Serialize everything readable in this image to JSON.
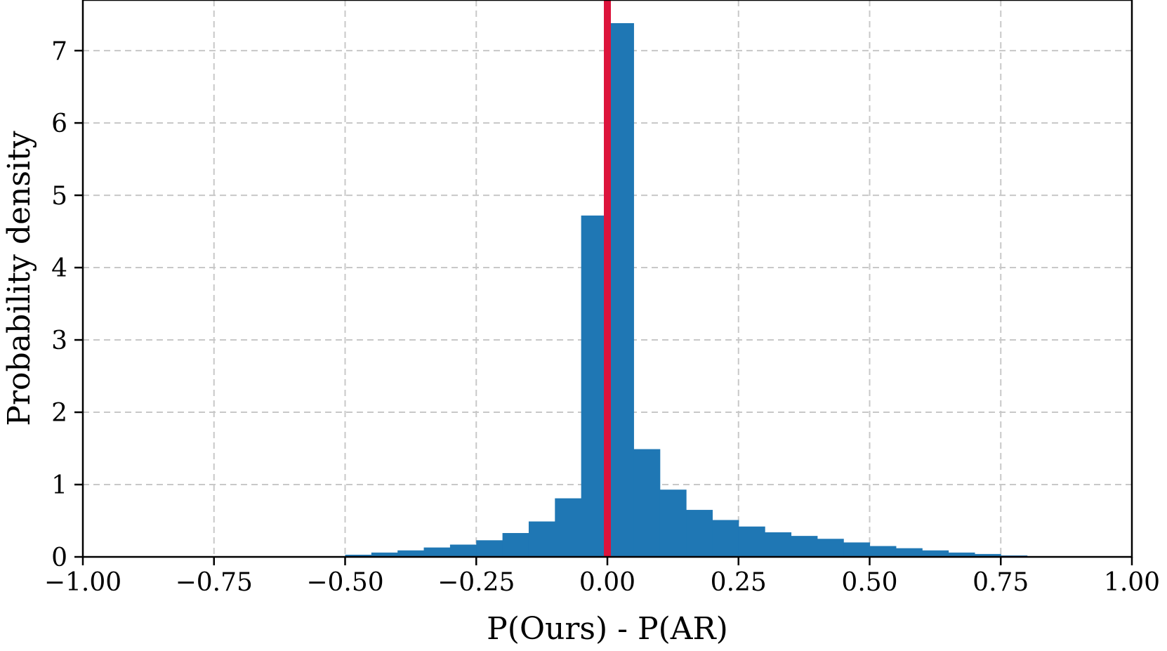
{
  "chart_data": {
    "type": "bar",
    "subtype": "histogram",
    "xlabel": "P(Ours) - P(AR)",
    "ylabel": "Probability density",
    "xlim": [
      -1.0,
      1.0
    ],
    "ylim": [
      0,
      7.7
    ],
    "xticks": [
      -1.0,
      -0.75,
      -0.5,
      -0.25,
      0.0,
      0.25,
      0.5,
      0.75,
      1.0
    ],
    "xtick_labels": [
      "−1.00",
      "−0.75",
      "−0.50",
      "−0.25",
      "0.00",
      "0.25",
      "0.50",
      "0.75",
      "1.00"
    ],
    "yticks": [
      0,
      1,
      2,
      3,
      4,
      5,
      6,
      7
    ],
    "ytick_labels": [
      "0",
      "1",
      "2",
      "3",
      "4",
      "5",
      "6",
      "7"
    ],
    "grid": true,
    "bin_width": 0.05,
    "bin_starts": [
      -0.5,
      -0.45,
      -0.4,
      -0.35,
      -0.3,
      -0.25,
      -0.2,
      -0.15,
      -0.1,
      -0.05,
      0.0,
      0.05,
      0.1,
      0.15,
      0.2,
      0.25,
      0.3,
      0.35,
      0.4,
      0.45,
      0.5,
      0.55,
      0.6,
      0.65,
      0.7,
      0.75
    ],
    "values": [
      0.03,
      0.06,
      0.09,
      0.13,
      0.17,
      0.23,
      0.33,
      0.49,
      0.81,
      4.72,
      7.38,
      1.49,
      0.93,
      0.65,
      0.51,
      0.42,
      0.34,
      0.29,
      0.25,
      0.2,
      0.15,
      0.12,
      0.09,
      0.06,
      0.04,
      0.02
    ],
    "bar_color": "#1f77b4",
    "reference_line": {
      "x": 0.0,
      "color": "#dc143c"
    }
  }
}
